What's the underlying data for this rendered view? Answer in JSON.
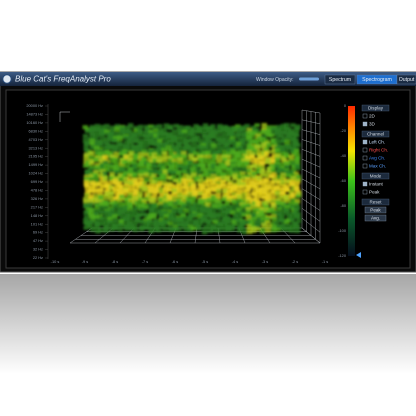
{
  "window": {
    "title": "Blue Cat's FreqAnalyst Pro",
    "opacity_label": "Window Opacity:",
    "tabs": [
      "Spectrum",
      "Spectrogram",
      "Output"
    ],
    "active_tab": 1
  },
  "plot": {
    "frequency_labels": [
      "20000 Hz",
      "14873 Hz",
      "10160 Hz",
      "6830 Hz",
      "4703 Hz",
      "3213 Hz",
      "2195 Hz",
      "1499 Hz",
      "1024 Hz",
      "699 Hz",
      "478 Hz",
      "326 Hz",
      "217 Hz",
      "148 Hz",
      "101 Hz",
      "69 Hz",
      "47 Hz",
      "32 Hz",
      "22 Hz"
    ],
    "time_labels": [
      "-10 s",
      "-9 s",
      "-8 s",
      "-7 s",
      "-6 s",
      "-5 s",
      "-4 s",
      "-3 s",
      "-2 s",
      "-1 s"
    ],
    "level_labels": [
      "0",
      "-20",
      "-40",
      "-60",
      "-80",
      "-100",
      "-120"
    ]
  },
  "sidebar": [
    {
      "heading": "Display",
      "options": [
        "2D",
        "3D"
      ],
      "checked": [
        false,
        true
      ]
    },
    {
      "heading": "Channel",
      "options": [
        "Left Ch.",
        "Right Ch.",
        "Avg Ch.",
        "Max Ch."
      ],
      "checked": [
        true,
        false,
        false,
        false
      ]
    },
    {
      "heading": "Mode",
      "options": [
        "Instant",
        "Peak"
      ],
      "checked": [
        true,
        false
      ]
    },
    {
      "heading": "Reset",
      "buttons": [
        "Peak",
        "Avg."
      ]
    }
  ]
}
